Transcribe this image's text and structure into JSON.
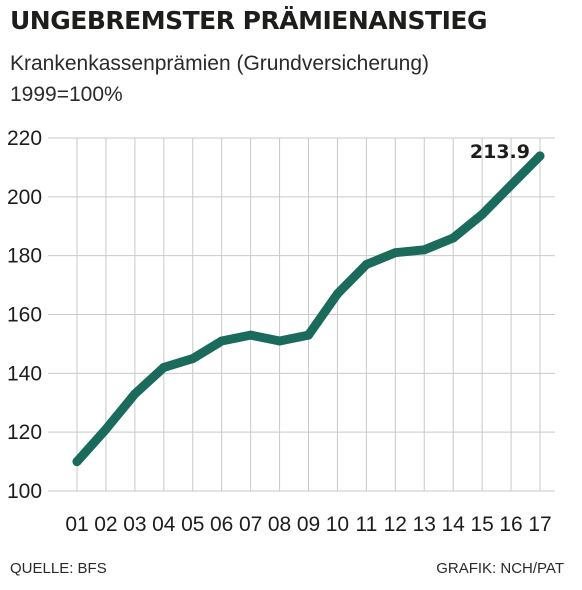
{
  "header": {
    "title": "UNGEBREMSTER PRÄMIENANSTIEG",
    "subtitle_line1": "Krankenkassenprämien (Grundversicherung)",
    "subtitle_line2": "1999=100%"
  },
  "footer": {
    "source": "QUELLE: BFS",
    "credit": "GRAFIK: NCH/PAT"
  },
  "colors": {
    "line": "#1a6b5c",
    "grid": "#c9c9c9",
    "text": "#1d1d1b"
  },
  "chart_data": {
    "type": "line",
    "title": "UNGEBREMSTER PRÄMIENANSTIEG",
    "subtitle": "Krankenkassenprämien (Grundversicherung) 1999=100%",
    "xlabel": "",
    "ylabel": "",
    "categories": [
      "01",
      "02",
      "03",
      "04",
      "05",
      "06",
      "07",
      "08",
      "09",
      "10",
      "11",
      "12",
      "13",
      "14",
      "15",
      "16",
      "17"
    ],
    "series": [
      {
        "values": [
          110,
          121,
          133,
          142,
          145,
          151,
          153,
          151,
          153,
          167,
          177,
          181,
          182,
          186,
          194,
          204,
          213.9
        ]
      }
    ],
    "yticks": [
      100,
      120,
      140,
      160,
      180,
      200,
      220
    ],
    "ylim": [
      100,
      220
    ],
    "grid": "vertical and horizontal, light gray",
    "annotations": [
      {
        "category": "17",
        "label": "213.9"
      }
    ]
  }
}
